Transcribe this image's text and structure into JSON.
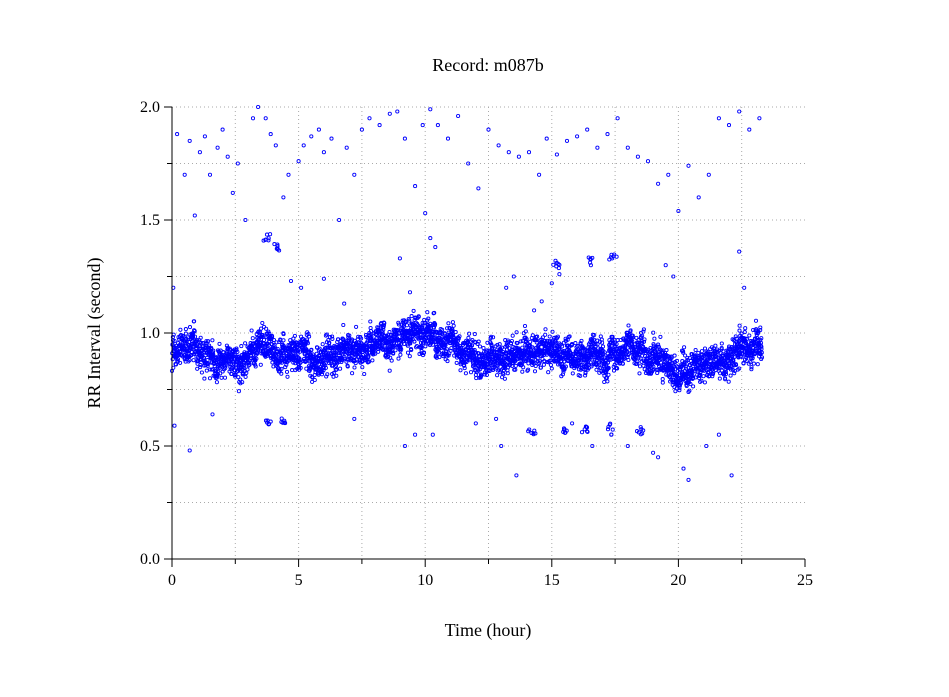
{
  "chart_data": {
    "type": "scatter",
    "title": "Record:  m087b",
    "xlabel": "Time (hour)",
    "ylabel": "RR Interval (second)",
    "xlim": [
      0,
      25
    ],
    "ylim": [
      0.0,
      2.0
    ],
    "xticks": [
      0,
      5,
      10,
      15,
      20,
      25
    ],
    "yticks": [
      0.0,
      0.5,
      1.0,
      1.5,
      2.0
    ],
    "ytick_labels": [
      "0.0",
      "0.5",
      "1.0",
      "1.5",
      "2.0"
    ],
    "x_minor_step": 2.5,
    "y_minor_step": 0.25,
    "grid": true,
    "series": [
      {
        "color": "#0000ff",
        "marker": "open-circle",
        "x_range": [
          0,
          23.3
        ],
        "baseline_profile": [
          {
            "x": 0.0,
            "y": 0.93
          },
          {
            "x": 1.0,
            "y": 0.9
          },
          {
            "x": 2.0,
            "y": 0.89
          },
          {
            "x": 3.0,
            "y": 0.92
          },
          {
            "x": 3.5,
            "y": 0.98
          },
          {
            "x": 4.5,
            "y": 0.9
          },
          {
            "x": 5.5,
            "y": 0.9
          },
          {
            "x": 6.5,
            "y": 0.88
          },
          {
            "x": 7.5,
            "y": 0.95
          },
          {
            "x": 8.5,
            "y": 0.98
          },
          {
            "x": 9.5,
            "y": 1.02
          },
          {
            "x": 10.5,
            "y": 0.97
          },
          {
            "x": 11.5,
            "y": 0.9
          },
          {
            "x": 12.5,
            "y": 0.9
          },
          {
            "x": 13.5,
            "y": 0.86
          },
          {
            "x": 14.0,
            "y": 0.92
          },
          {
            "x": 15.0,
            "y": 0.9
          },
          {
            "x": 16.0,
            "y": 0.9
          },
          {
            "x": 17.0,
            "y": 0.92
          },
          {
            "x": 18.0,
            "y": 0.93
          },
          {
            "x": 19.0,
            "y": 0.88
          },
          {
            "x": 20.0,
            "y": 0.83
          },
          {
            "x": 21.0,
            "y": 0.85
          },
          {
            "x": 22.0,
            "y": 0.91
          },
          {
            "x": 23.3,
            "y": 0.91
          }
        ],
        "band_halfwidth": 0.12,
        "outliers_high": [
          [
            0.2,
            1.88
          ],
          [
            0.5,
            1.7
          ],
          [
            0.7,
            1.85
          ],
          [
            0.9,
            1.52
          ],
          [
            1.1,
            1.8
          ],
          [
            1.3,
            1.87
          ],
          [
            1.5,
            1.7
          ],
          [
            1.8,
            1.82
          ],
          [
            2.0,
            1.9
          ],
          [
            2.2,
            1.78
          ],
          [
            2.4,
            1.62
          ],
          [
            2.6,
            1.75
          ],
          [
            2.9,
            1.5
          ],
          [
            3.2,
            1.95
          ],
          [
            3.4,
            2.0
          ],
          [
            3.7,
            1.95
          ],
          [
            3.9,
            1.88
          ],
          [
            4.1,
            1.83
          ],
          [
            4.4,
            1.6
          ],
          [
            4.6,
            1.7
          ],
          [
            5.0,
            1.76
          ],
          [
            5.2,
            1.83
          ],
          [
            5.5,
            1.87
          ],
          [
            5.8,
            1.9
          ],
          [
            6.0,
            1.8
          ],
          [
            6.3,
            1.86
          ],
          [
            6.6,
            1.5
          ],
          [
            6.9,
            1.82
          ],
          [
            7.2,
            1.7
          ],
          [
            7.5,
            1.9
          ],
          [
            7.8,
            1.95
          ],
          [
            8.2,
            1.92
          ],
          [
            8.6,
            1.97
          ],
          [
            8.9,
            1.98
          ],
          [
            9.2,
            1.86
          ],
          [
            9.6,
            1.65
          ],
          [
            9.9,
            1.92
          ],
          [
            10.2,
            1.99
          ],
          [
            10.5,
            1.92
          ],
          [
            10.9,
            1.86
          ],
          [
            11.3,
            1.96
          ],
          [
            11.7,
            1.75
          ],
          [
            12.1,
            1.64
          ],
          [
            12.5,
            1.9
          ],
          [
            12.9,
            1.83
          ],
          [
            13.3,
            1.8
          ],
          [
            13.7,
            1.78
          ],
          [
            14.1,
            1.8
          ],
          [
            14.5,
            1.7
          ],
          [
            14.8,
            1.86
          ],
          [
            15.2,
            1.79
          ],
          [
            15.6,
            1.85
          ],
          [
            16.0,
            1.87
          ],
          [
            16.4,
            1.9
          ],
          [
            16.8,
            1.82
          ],
          [
            17.2,
            1.88
          ],
          [
            17.6,
            1.95
          ],
          [
            18.0,
            1.82
          ],
          [
            18.4,
            1.78
          ],
          [
            18.8,
            1.76
          ],
          [
            19.2,
            1.66
          ],
          [
            19.6,
            1.7
          ],
          [
            20.0,
            1.54
          ],
          [
            20.4,
            1.74
          ],
          [
            20.8,
            1.6
          ],
          [
            21.2,
            1.7
          ],
          [
            21.6,
            1.95
          ],
          [
            22.0,
            1.92
          ],
          [
            22.4,
            1.98
          ],
          [
            22.8,
            1.9
          ],
          [
            23.2,
            1.95
          ]
        ],
        "outlier_clusters": [
          {
            "x": 3.7,
            "y": 1.42
          },
          {
            "x": 4.2,
            "y": 1.38
          },
          {
            "x": 15.2,
            "y": 1.3
          },
          {
            "x": 16.5,
            "y": 1.32
          },
          {
            "x": 17.4,
            "y": 1.34
          },
          {
            "x": 3.8,
            "y": 0.6
          },
          {
            "x": 4.4,
            "y": 0.61
          },
          {
            "x": 14.2,
            "y": 0.55
          },
          {
            "x": 15.5,
            "y": 0.57
          },
          {
            "x": 16.3,
            "y": 0.58
          },
          {
            "x": 17.3,
            "y": 0.57
          },
          {
            "x": 18.5,
            "y": 0.56
          }
        ],
        "outliers_mid_low": [
          [
            0.1,
            0.59
          ],
          [
            0.7,
            0.48
          ],
          [
            1.6,
            0.64
          ],
          [
            4.7,
            1.23
          ],
          [
            5.1,
            1.2
          ],
          [
            6.0,
            1.24
          ],
          [
            6.8,
            1.13
          ],
          [
            7.2,
            0.62
          ],
          [
            9.0,
            1.33
          ],
          [
            9.4,
            1.18
          ],
          [
            9.2,
            0.5
          ],
          [
            9.6,
            0.55
          ],
          [
            10.0,
            1.53
          ],
          [
            10.2,
            1.42
          ],
          [
            10.4,
            1.38
          ],
          [
            10.3,
            0.55
          ],
          [
            12.0,
            0.6
          ],
          [
            12.8,
            0.62
          ],
          [
            13.2,
            1.2
          ],
          [
            13.5,
            1.25
          ],
          [
            13.0,
            0.5
          ],
          [
            13.6,
            0.37
          ],
          [
            14.3,
            1.1
          ],
          [
            14.6,
            1.14
          ],
          [
            15.0,
            1.22
          ],
          [
            15.3,
            1.26
          ],
          [
            15.8,
            0.6
          ],
          [
            16.6,
            0.5
          ],
          [
            18.0,
            0.5
          ],
          [
            19.0,
            0.47
          ],
          [
            19.2,
            0.45
          ],
          [
            19.5,
            1.3
          ],
          [
            19.8,
            1.25
          ],
          [
            20.2,
            0.4
          ],
          [
            20.4,
            0.35
          ],
          [
            21.6,
            0.55
          ],
          [
            22.1,
            0.37
          ],
          [
            22.4,
            1.36
          ],
          [
            22.6,
            1.2
          ],
          [
            0.05,
            1.2
          ],
          [
            21.1,
            0.5
          ]
        ]
      }
    ]
  }
}
